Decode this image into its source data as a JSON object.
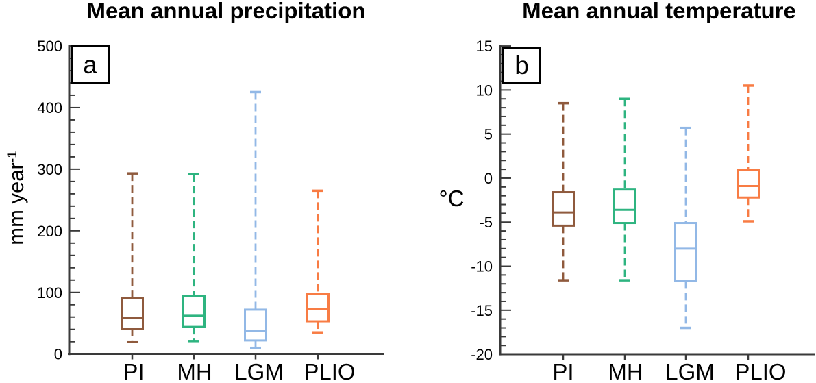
{
  "figure": {
    "background": "#ffffff",
    "text_color": "#000000",
    "axis_color": "#3a3a3a"
  },
  "chart_data": [
    {
      "type": "box",
      "panel_label": "a",
      "title": "Mean annual precipitation",
      "ylabel": "mm year⁻¹",
      "ylabel_main": "mm year",
      "ylabel_sup": "-1",
      "xlabel": "",
      "categories": [
        "PI",
        "MH",
        "LGM",
        "PLIO"
      ],
      "colors": [
        "#8f5a3d",
        "#2eb480",
        "#92b8e6",
        "#f87c44"
      ],
      "ylim": [
        0,
        500
      ],
      "ytick_values": [
        0,
        100,
        200,
        300,
        400,
        500
      ],
      "ytick_labels": [
        "0",
        "100",
        "200",
        "300",
        "400",
        "500"
      ],
      "ytick_minor_step": 20,
      "grid": false,
      "legend": "none",
      "boxes": [
        {
          "category": "PI",
          "whisker_low": 20,
          "q1": 41,
          "median": 58,
          "q3": 91,
          "whisker_high": 293
        },
        {
          "category": "MH",
          "whisker_low": 21,
          "q1": 44,
          "median": 62,
          "q3": 94,
          "whisker_high": 292
        },
        {
          "category": "LGM",
          "whisker_low": 10,
          "q1": 22,
          "median": 38,
          "q3": 72,
          "whisker_high": 425
        },
        {
          "category": "PLIO",
          "whisker_low": 35,
          "q1": 53,
          "median": 73,
          "q3": 98,
          "whisker_high": 265
        }
      ]
    },
    {
      "type": "box",
      "panel_label": "b",
      "title": "Mean annual temperature",
      "ylabel": "°C",
      "ylabel_main": "°C",
      "ylabel_sup": "",
      "xlabel": "",
      "categories": [
        "PI",
        "MH",
        "LGM",
        "PLIO"
      ],
      "colors": [
        "#8f5a3d",
        "#2eb480",
        "#92b8e6",
        "#f87c44"
      ],
      "ylim": [
        -20,
        15
      ],
      "ytick_values": [
        15,
        10,
        5,
        0,
        -5,
        -10,
        -15,
        -20
      ],
      "ytick_labels": [
        "15",
        "10",
        "5",
        "0",
        "-5",
        "-10",
        "-15",
        "-20"
      ],
      "ytick_minor_step": 1,
      "grid": false,
      "legend": "none",
      "boxes": [
        {
          "category": "PI",
          "whisker_low": -11.6,
          "q1": -5.4,
          "median": -3.9,
          "q3": -1.6,
          "whisker_high": 8.5
        },
        {
          "category": "MH",
          "whisker_low": -11.6,
          "q1": -5.1,
          "median": -3.6,
          "q3": -1.3,
          "whisker_high": 9.0
        },
        {
          "category": "LGM",
          "whisker_low": -17.0,
          "q1": -11.7,
          "median": -8.0,
          "q3": -5.1,
          "whisker_high": 5.7
        },
        {
          "category": "PLIO",
          "whisker_low": -4.9,
          "q1": -2.2,
          "median": -0.9,
          "q3": 0.9,
          "whisker_high": 10.5
        }
      ]
    }
  ]
}
